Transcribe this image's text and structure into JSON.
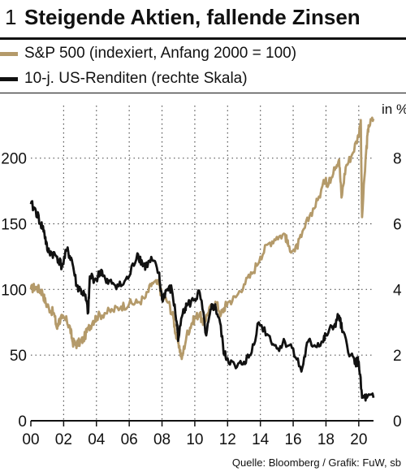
{
  "figure": {
    "number": "1",
    "title": "Steigende Aktien, fallende Zinsen",
    "source": "Quelle: Bloomberg / Grafik: FuW, sb"
  },
  "colors": {
    "sp500": "#b49a6a",
    "yield": "#111111",
    "grid": "#555555"
  },
  "chart_data": {
    "type": "line",
    "title": "Steigende Aktien, fallende Zinsen",
    "x_label": "",
    "x_ticks": [
      "00",
      "02",
      "04",
      "06",
      "08",
      "10",
      "12",
      "14",
      "16",
      "18",
      "20"
    ],
    "xlim": [
      2000,
      2020.9
    ],
    "left_axis": {
      "ticks": [
        0,
        50,
        100,
        150,
        200
      ],
      "ylim": [
        0,
        240
      ]
    },
    "right_axis": {
      "ticks": [
        0,
        2,
        4,
        6,
        8
      ],
      "ylim": [
        0,
        9.6
      ],
      "unit_label": "in %"
    },
    "grid": "dotted",
    "legend_position": "top",
    "series": [
      {
        "name": "S&P 500 (indexiert, Anfang 2000 = 100)",
        "axis": "left",
        "x": [
          2000.0,
          2000.25,
          2000.5,
          2000.7,
          2000.9,
          2001.1,
          2001.4,
          2001.6,
          2001.7,
          2001.9,
          2002.2,
          2002.4,
          2002.55,
          2002.75,
          2003.0,
          2003.2,
          2003.5,
          2003.8,
          2004.0,
          2004.5,
          2005.0,
          2005.5,
          2006.0,
          2006.5,
          2007.0,
          2007.4,
          2007.8,
          2008.0,
          2008.4,
          2008.7,
          2008.85,
          2009.0,
          2009.2,
          2009.5,
          2009.8,
          2010.0,
          2010.3,
          2010.5,
          2010.8,
          2011.0,
          2011.3,
          2011.6,
          2011.8,
          2012.0,
          2012.5,
          2013.0,
          2013.5,
          2014.0,
          2014.5,
          2015.0,
          2015.5,
          2015.7,
          2016.1,
          2016.5,
          2017.0,
          2017.5,
          2018.0,
          2018.1,
          2018.5,
          2018.8,
          2018.95,
          2019.2,
          2019.6,
          2020.0,
          2020.12,
          2020.2,
          2020.45,
          2020.6,
          2020.9
        ],
        "values": [
          100,
          102,
          100,
          98,
          90,
          86,
          82,
          70,
          76,
          78,
          76,
          70,
          60,
          58,
          60,
          62,
          70,
          76,
          79,
          82,
          84,
          87,
          89,
          90,
          94,
          105,
          104,
          95,
          90,
          78,
          65,
          60,
          47,
          65,
          74,
          78,
          82,
          73,
          82,
          86,
          90,
          81,
          86,
          90,
          94,
          104,
          112,
          125,
          135,
          140,
          142,
          133,
          129,
          140,
          156,
          168,
          185,
          178,
          193,
          199,
          170,
          193,
          203,
          218,
          229,
          155,
          205,
          225,
          230
        ]
      },
      {
        "name": "10-j. US-Renditen (rechte Skala)",
        "axis": "right",
        "x": [
          2000.0,
          2000.3,
          2000.6,
          2000.8,
          2001.0,
          2001.3,
          2001.6,
          2001.9,
          2002.2,
          2002.5,
          2002.8,
          2003.0,
          2003.3,
          2003.5,
          2003.6,
          2004.0,
          2004.3,
          2004.6,
          2005.0,
          2005.5,
          2006.0,
          2006.5,
          2006.8,
          2007.0,
          2007.4,
          2007.8,
          2008.0,
          2008.3,
          2008.6,
          2008.9,
          2009.0,
          2009.3,
          2009.5,
          2010.0,
          2010.3,
          2010.7,
          2011.0,
          2011.2,
          2011.5,
          2011.8,
          2012.0,
          2012.5,
          2013.0,
          2013.4,
          2013.9,
          2014.5,
          2015.0,
          2015.5,
          2016.0,
          2016.5,
          2016.9,
          2017.3,
          2017.8,
          2018.0,
          2018.5,
          2018.8,
          2019.0,
          2019.5,
          2019.8,
          2020.0,
          2020.2,
          2020.5,
          2020.9
        ],
        "values": [
          6.6,
          6.4,
          6.0,
          5.8,
          5.2,
          5.1,
          5.0,
          4.7,
          5.2,
          4.9,
          4.1,
          4.0,
          3.8,
          3.3,
          4.4,
          4.3,
          4.6,
          4.2,
          4.2,
          4.1,
          4.4,
          5.1,
          4.8,
          4.7,
          4.9,
          4.5,
          3.7,
          4.0,
          4.0,
          3.0,
          2.5,
          3.4,
          3.5,
          3.7,
          3.9,
          2.6,
          3.4,
          3.5,
          3.1,
          2.0,
          1.9,
          1.6,
          1.8,
          2.0,
          3.0,
          2.6,
          2.2,
          2.4,
          2.2,
          1.5,
          2.4,
          2.3,
          2.4,
          2.6,
          2.9,
          3.2,
          2.7,
          2.0,
          1.8,
          1.8,
          0.7,
          0.7,
          0.7
        ]
      }
    ]
  }
}
